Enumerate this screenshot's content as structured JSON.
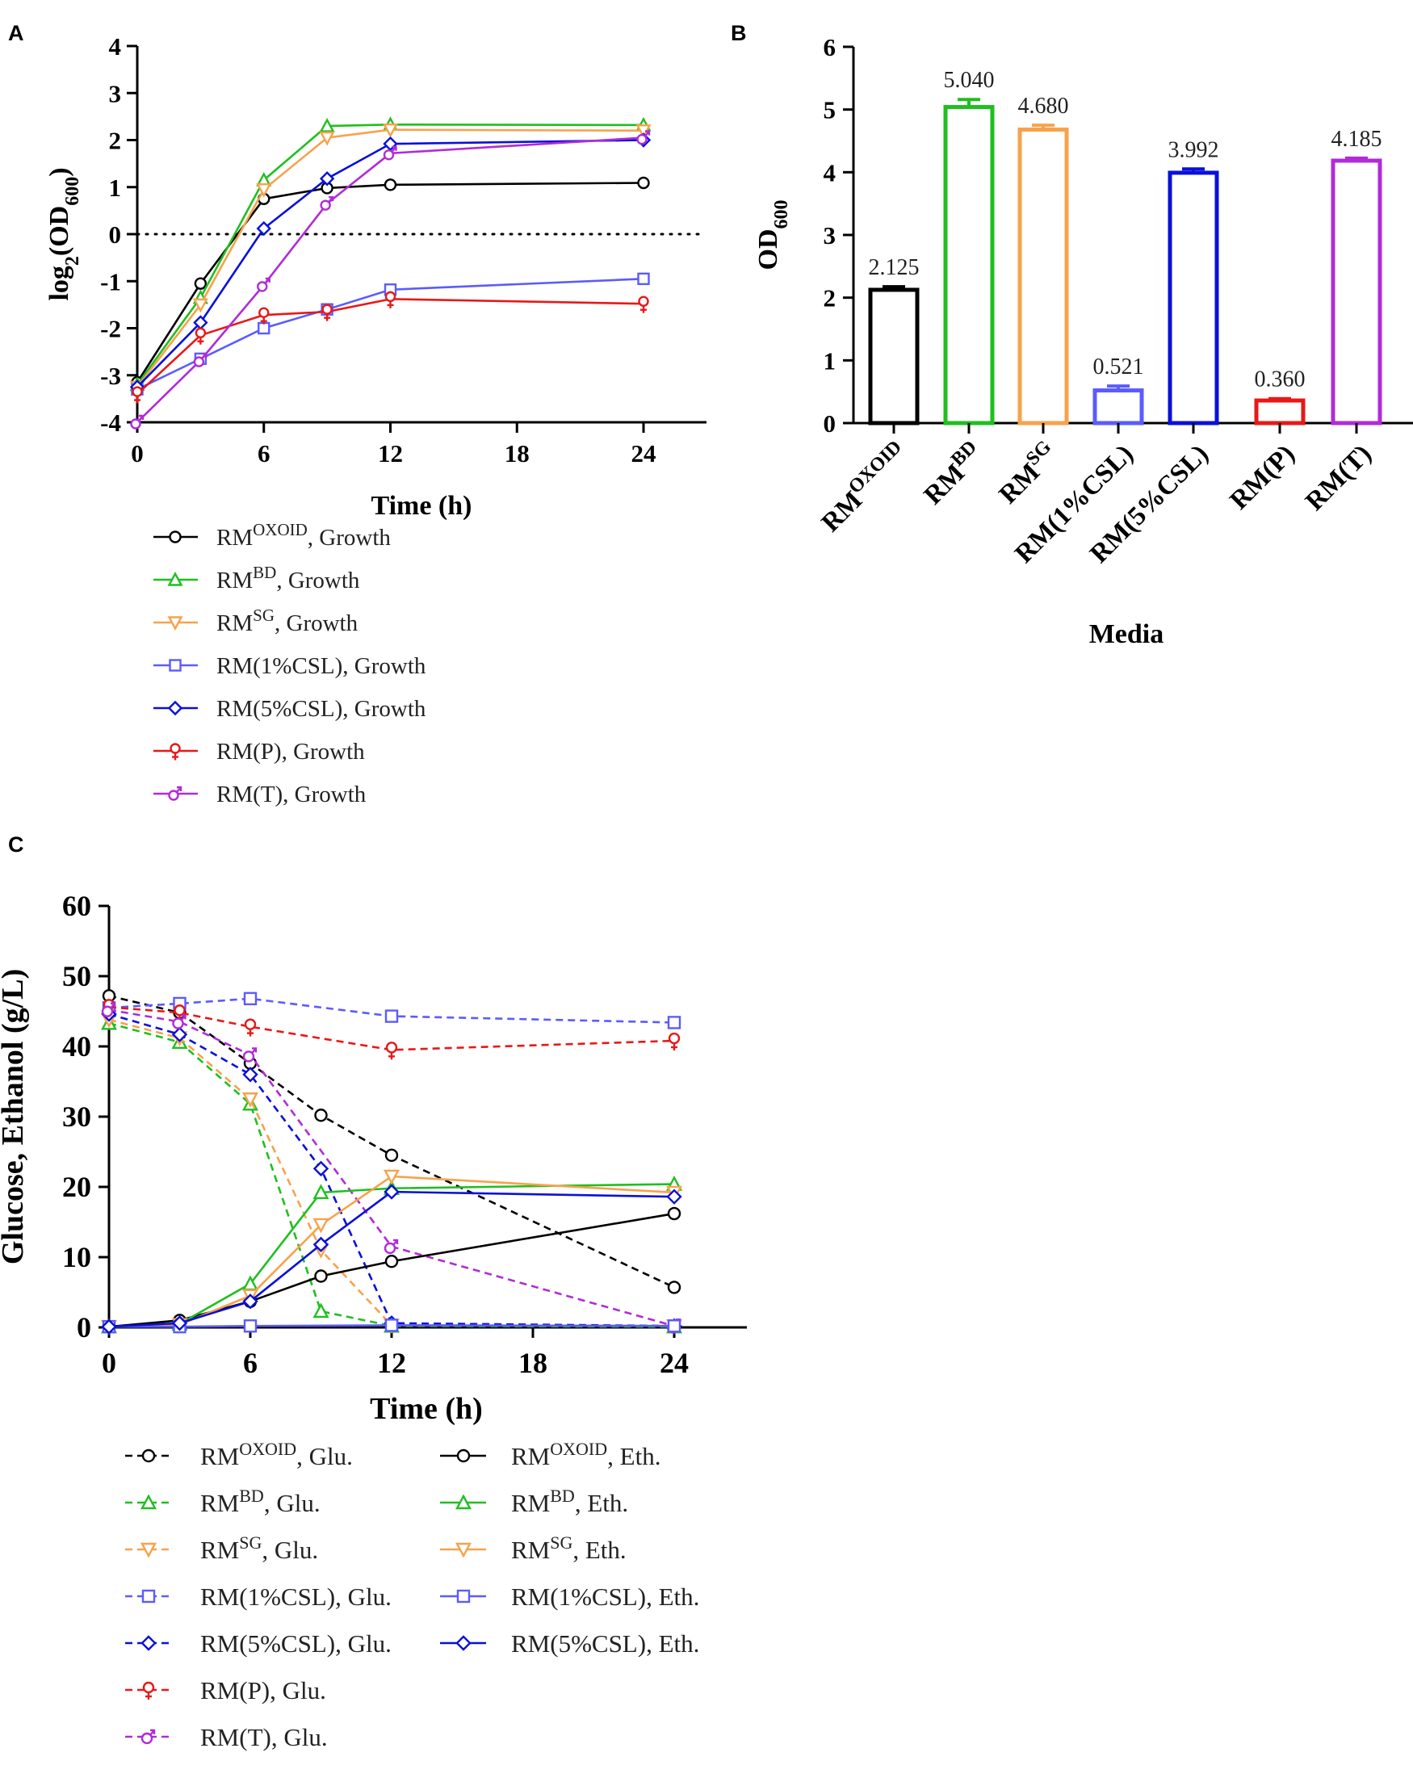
{
  "panel_labels": {
    "a": "A",
    "b": "B",
    "c": "C"
  },
  "chart_data": [
    {
      "id": "A",
      "type": "line",
      "xlabel": "Time (h)",
      "ylabel_prefix": "log",
      "ylabel_sub1": "2",
      "ylabel_mid": "(OD",
      "ylabel_sub2": "600",
      "ylabel_suffix": ")",
      "xlim": [
        0,
        27
      ],
      "ylim": [
        -4,
        4
      ],
      "xticks": [
        0,
        6,
        12,
        18,
        24
      ],
      "yticks": [
        -4,
        -3,
        -2,
        -1,
        0,
        1,
        2,
        3,
        4
      ],
      "reference_line": {
        "y": 0,
        "style": "dotted"
      },
      "x": [
        0,
        3,
        6,
        9,
        12,
        24
      ],
      "series": [
        {
          "key": "oxoid",
          "base": "RM",
          "sup": "OXOID",
          "rest": ", Growth",
          "color": "#000000",
          "marker": "circle",
          "values": [
            -3.15,
            -1.05,
            0.75,
            0.98,
            1.05,
            1.09
          ]
        },
        {
          "key": "bd",
          "base": "RM",
          "sup": "BD",
          "rest": ", Growth",
          "color": "#1fbf1f",
          "marker": "triangle-up",
          "values": [
            -3.2,
            -1.35,
            1.15,
            2.3,
            2.33,
            2.32
          ]
        },
        {
          "key": "sg",
          "base": "RM",
          "sup": "SG",
          "rest": ", Growth",
          "color": "#f7a24b",
          "marker": "triangle-down",
          "values": [
            -3.25,
            -1.5,
            0.95,
            2.05,
            2.22,
            2.2
          ]
        },
        {
          "key": "csl1",
          "base": "RM(1%CSL), Growth",
          "sup": "",
          "rest": "",
          "color": "#5b5bff",
          "marker": "square",
          "values": [
            -3.3,
            -2.65,
            -2.0,
            -1.6,
            -1.18,
            -0.95
          ]
        },
        {
          "key": "csl5",
          "base": "RM(5%CSL), Growth",
          "sup": "",
          "rest": "",
          "color": "#0a10d8",
          "marker": "diamond",
          "values": [
            -3.25,
            -1.88,
            0.12,
            1.18,
            1.92,
            2.0
          ]
        },
        {
          "key": "p",
          "base": "RM(P), Growth",
          "sup": "",
          "rest": "",
          "color": "#e81818",
          "marker": "venus",
          "values": [
            -3.4,
            -2.15,
            -1.72,
            -1.65,
            -1.38,
            -1.48
          ]
        },
        {
          "key": "t",
          "base": "RM(T), Growth",
          "sup": "",
          "rest": "",
          "color": "#b12bd8",
          "marker": "mars",
          "values": [
            -4.0,
            -2.68,
            -1.08,
            0.65,
            1.72,
            2.05
          ]
        }
      ]
    },
    {
      "id": "B",
      "type": "bar",
      "xlabel": "Media",
      "ylabel_main": "OD",
      "ylabel_sub": "600",
      "ylim": [
        0,
        6
      ],
      "yticks": [
        0,
        1,
        2,
        3,
        4,
        5,
        6
      ],
      "bars": [
        {
          "base": "RM",
          "sup": "OXOID",
          "value": 2.125,
          "label": "2.125",
          "error": 0.05,
          "color": "#000000"
        },
        {
          "base": "RM",
          "sup": "BD",
          "value": 5.04,
          "label": "5.040",
          "error": 0.12,
          "color": "#1fbf1f"
        },
        {
          "base": "RM",
          "sup": "SG",
          "value": 4.68,
          "label": "4.680",
          "error": 0.07,
          "color": "#f7a24b"
        },
        {
          "base": "RM(1%CSL)",
          "sup": "",
          "value": 0.521,
          "label": "0.521",
          "error": 0.07,
          "color": "#5b5bff"
        },
        {
          "base": "RM(5%CSL)",
          "sup": "",
          "value": 3.992,
          "label": "3.992",
          "error": 0.06,
          "color": "#0a10d8"
        },
        {
          "base": "RM(P)",
          "sup": "",
          "value": 0.36,
          "label": "0.360",
          "error": 0.03,
          "color": "#e81818"
        },
        {
          "base": "RM(T)",
          "sup": "",
          "value": 4.185,
          "label": "4.185",
          "error": 0.04,
          "color": "#b12bd8"
        }
      ]
    },
    {
      "id": "C",
      "type": "line",
      "xlabel": "Time (h)",
      "ylabel": "Glucose, Ethanol (g/L)",
      "xlim": [
        0,
        27
      ],
      "ylim": [
        0,
        60
      ],
      "xticks": [
        0,
        6,
        12,
        18,
        24
      ],
      "yticks": [
        0,
        10,
        20,
        30,
        40,
        50,
        60
      ],
      "x": [
        0,
        3,
        6,
        9,
        12,
        24
      ],
      "series": [
        {
          "key": "oxoid_glu",
          "base": "RM",
          "sup": "OXOID",
          "rest": ", Glu.",
          "dashed": true,
          "color": "#000000",
          "marker": "circle",
          "values": [
            47.2,
            44.8,
            37.6,
            30.2,
            24.5,
            5.7
          ]
        },
        {
          "key": "bd_glu",
          "base": "RM",
          "sup": "BD",
          "rest": ", Glu.",
          "dashed": true,
          "color": "#1fbf1f",
          "marker": "triangle-up",
          "values": [
            43.3,
            40.6,
            31.8,
            2.3,
            0.2,
            0.1
          ]
        },
        {
          "key": "sg_glu",
          "base": "RM",
          "sup": "SG",
          "rest": ", Glu.",
          "dashed": true,
          "color": "#f7a24b",
          "marker": "triangle-down",
          "values": [
            43.8,
            41.2,
            32.5,
            11.0,
            0.3,
            0.2
          ]
        },
        {
          "key": "csl1_glu",
          "base": "RM(1%CSL), Glu.",
          "sup": "",
          "rest": "",
          "dashed": true,
          "color": "#5b5bff",
          "marker": "square",
          "values": [
            45.5,
            46.1,
            46.8,
            null,
            44.3,
            43.4
          ]
        },
        {
          "key": "csl5_glu",
          "base": "RM(5%CSL), Glu.",
          "sup": "",
          "rest": "",
          "dashed": true,
          "color": "#0a10d8",
          "marker": "diamond",
          "values": [
            44.6,
            41.7,
            36.0,
            22.6,
            0.6,
            0.2
          ]
        },
        {
          "key": "p_glu",
          "base": "RM(P), Glu.",
          "sup": "",
          "rest": "",
          "dashed": true,
          "color": "#e81818",
          "marker": "venus",
          "values": [
            45.6,
            44.8,
            42.8,
            null,
            39.5,
            40.8
          ]
        },
        {
          "key": "t_glu",
          "base": "RM(T), Glu.",
          "sup": "",
          "rest": "",
          "dashed": true,
          "color": "#b12bd8",
          "marker": "mars",
          "values": [
            45.2,
            43.5,
            38.8,
            null,
            11.5,
            0.2
          ]
        },
        {
          "key": "oxoid_eth",
          "base": "RM",
          "sup": "OXOID",
          "rest": ", Eth.",
          "dashed": false,
          "color": "#000000",
          "marker": "circle",
          "values": [
            0.1,
            1.0,
            3.7,
            7.3,
            9.4,
            16.2
          ]
        },
        {
          "key": "bd_eth",
          "base": "RM",
          "sup": "BD",
          "rest": ", Eth.",
          "dashed": false,
          "color": "#1fbf1f",
          "marker": "triangle-up",
          "values": [
            0.1,
            0.5,
            6.2,
            19.2,
            19.8,
            20.4
          ]
        },
        {
          "key": "sg_eth",
          "base": "RM",
          "sup": "SG",
          "rest": ", Eth.",
          "dashed": false,
          "color": "#f7a24b",
          "marker": "triangle-down",
          "values": [
            0.1,
            0.4,
            4.5,
            14.6,
            21.5,
            19.2
          ]
        },
        {
          "key": "csl1_eth",
          "base": "RM(1%CSL), Eth.",
          "sup": "",
          "rest": "",
          "dashed": false,
          "color": "#5b5bff",
          "marker": "square",
          "values": [
            0.1,
            0.1,
            0.2,
            null,
            0.3,
            0.2
          ]
        },
        {
          "key": "csl5_eth",
          "base": "RM(5%CSL), Eth.",
          "sup": "",
          "rest": "",
          "dashed": false,
          "color": "#0a10d8",
          "marker": "diamond",
          "values": [
            0.1,
            0.6,
            3.7,
            11.8,
            19.3,
            18.6
          ]
        }
      ]
    }
  ]
}
